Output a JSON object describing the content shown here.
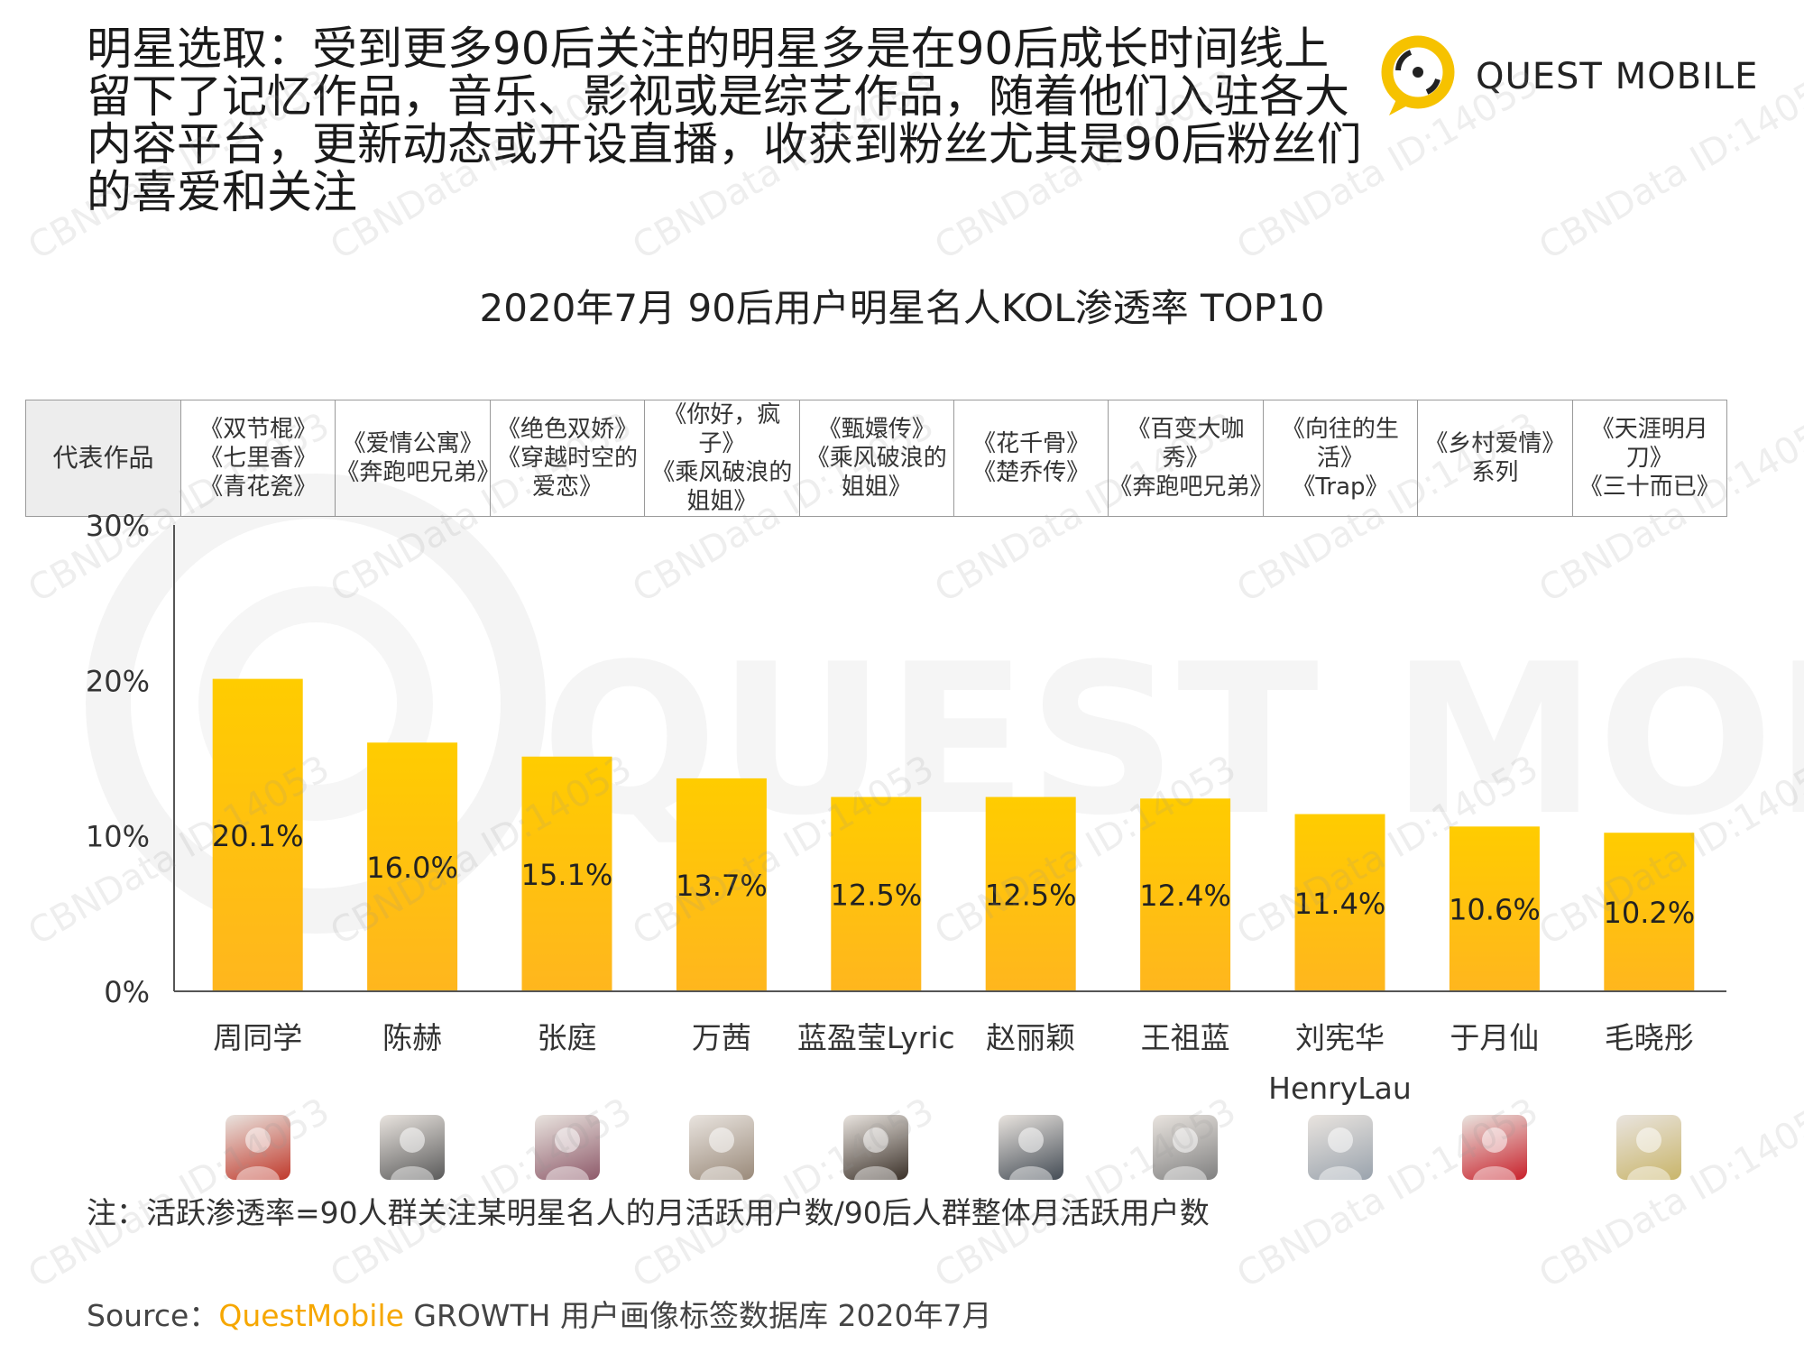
{
  "headline": "明星选取：受到更多90后关注的明星多是在90后成长时间线上留下了记忆作品，音乐、影视或是综艺作品，随着他们入驻各大内容平台，更新动态或开设直播，收获到粉丝尤其是90后粉丝们的喜爱和关注",
  "logo": {
    "text": "QUEST MOBILE",
    "icon": "questmobile-logo-icon",
    "color": "#f6c200"
  },
  "works_table": {
    "header": "代表作品",
    "cells": [
      "《双节棍》\n《七里香》\n《青花瓷》",
      "《爱情公寓》\n《奔跑吧兄弟》",
      "《绝色双娇》\n《穿越时空的\n爱恋》",
      "《你好，疯子》\n《乘风破浪的\n姐姐》",
      "《甄嬛传》\n《乘风破浪的\n姐姐》",
      "《花千骨》\n《楚乔传》",
      "《百变大咖秀》\n《奔跑吧兄弟》",
      "《向往的生活》\n《Trap》",
      "《乡村爱情》\n系列",
      "《天涯明月刀》\n《三十而已》"
    ]
  },
  "chart_data": {
    "type": "bar",
    "title": "2020年7月 90后用户明星名人KOL渗透率 TOP10",
    "categories": [
      "周同学",
      "陈赫",
      "张庭",
      "万茜",
      "蓝盈莹Lyric",
      "赵丽颖",
      "王祖蓝",
      "刘宪华\nHenryLau",
      "于月仙",
      "毛晓彤"
    ],
    "values": [
      20.1,
      16.0,
      15.1,
      13.7,
      12.5,
      12.5,
      12.4,
      11.4,
      10.6,
      10.2
    ],
    "value_labels": [
      "20.1%",
      "16.0%",
      "15.1%",
      "13.7%",
      "12.5%",
      "12.5%",
      "12.4%",
      "11.4%",
      "10.6%",
      "10.2%"
    ],
    "y_ticks": [
      0,
      10,
      20,
      30
    ],
    "y_tick_labels": [
      "0%",
      "10%",
      "20%",
      "30%"
    ],
    "ylim": [
      0,
      30
    ],
    "xlabel": "",
    "ylabel": "",
    "grid": false,
    "bar_color_top": "#ffcc00",
    "bar_color_bottom": "#ffb61e"
  },
  "avatars": [
    {
      "name": "avatar-zhoutongxue-icon",
      "color": "#c0392b"
    },
    {
      "name": "avatar-chenhe-icon",
      "color": "#5a5a5a"
    },
    {
      "name": "avatar-zhangting-icon",
      "color": "#8e5a6a"
    },
    {
      "name": "avatar-wanqian-icon",
      "color": "#9a8a7a"
    },
    {
      "name": "avatar-lanyingying-icon",
      "color": "#3a3028"
    },
    {
      "name": "avatar-zhaoliying-icon",
      "color": "#444c55"
    },
    {
      "name": "avatar-wangzulan-icon",
      "color": "#808080"
    },
    {
      "name": "avatar-liuxianhua-icon",
      "color": "#9aa3ad"
    },
    {
      "name": "avatar-yuyuexian-icon",
      "color": "#c8202a"
    },
    {
      "name": "avatar-maoxiaotong-icon",
      "color": "#c9b56a"
    }
  ],
  "note": "注：活跃渗透率=90人群关注某明星名人的月活跃用户数/90后人群整体月活跃用户数",
  "source": {
    "label": "Source：",
    "brand": "QuestMobile",
    "rest": " GROWTH 用户画像标签数据库 2020年7月"
  },
  "watermark": "CBNData ID:14053"
}
